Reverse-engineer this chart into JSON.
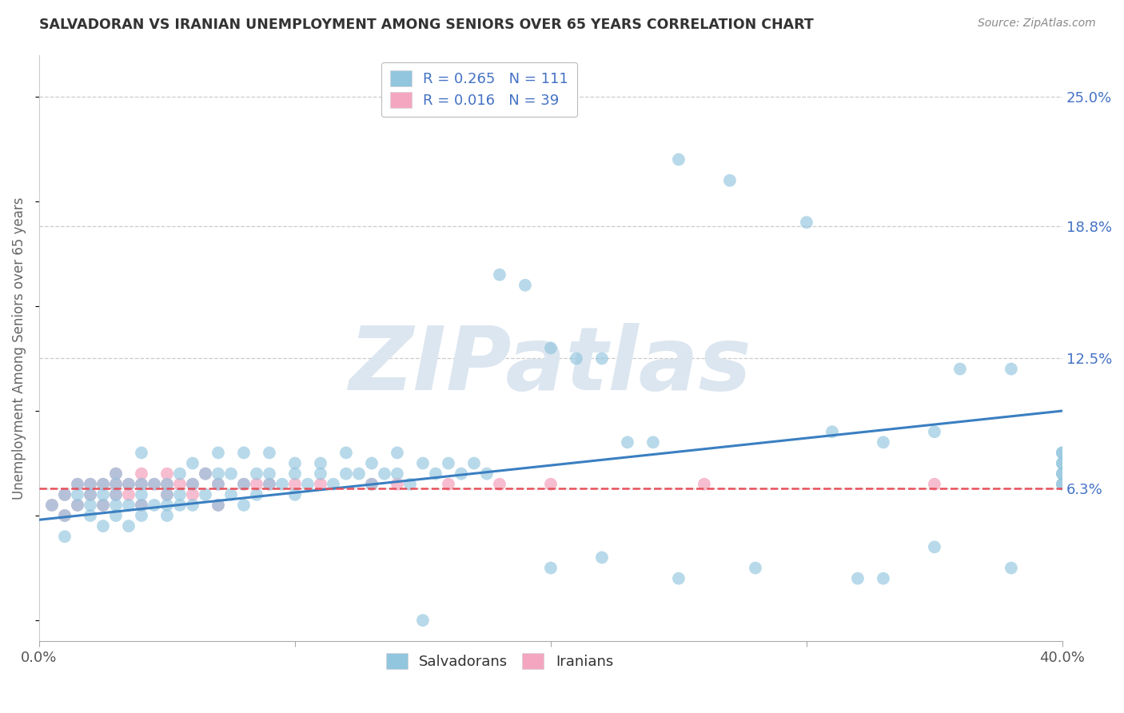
{
  "title": "SALVADORAN VS IRANIAN UNEMPLOYMENT AMONG SENIORS OVER 65 YEARS CORRELATION CHART",
  "source": "Source: ZipAtlas.com",
  "ylabel": "Unemployment Among Seniors over 65 years",
  "xlim": [
    0.0,
    0.4
  ],
  "ylim": [
    -0.01,
    0.27
  ],
  "yticks": [
    0.063,
    0.125,
    0.188,
    0.25
  ],
  "ytick_labels": [
    "6.3%",
    "12.5%",
    "18.8%",
    "25.0%"
  ],
  "xticks": [
    0.0,
    0.1,
    0.2,
    0.3,
    0.4
  ],
  "xtick_labels": [
    "0.0%",
    "",
    "",
    "",
    "40.0%"
  ],
  "salvadoran_R": 0.265,
  "salvadoran_N": 111,
  "iranian_R": 0.016,
  "iranian_N": 39,
  "salvadoran_color": "#92c5de",
  "iranian_color": "#f4a6c0",
  "salvadoran_line_color": "#3a7fc1",
  "iranian_line_color": "#e8505b",
  "background_color": "#ffffff",
  "watermark_text": "ZIPatlas",
  "watermark_color": "#dce6f0",
  "grid_color": "#cccccc",
  "legend_edge_color": "#bbbbbb",
  "label_color": "#4472c4",
  "title_color": "#333333",
  "source_color": "#888888",
  "salvadoran_x": [
    0.005,
    0.01,
    0.01,
    0.01,
    0.015,
    0.015,
    0.015,
    0.02,
    0.02,
    0.02,
    0.02,
    0.025,
    0.025,
    0.025,
    0.025,
    0.03,
    0.03,
    0.03,
    0.03,
    0.03,
    0.035,
    0.035,
    0.035,
    0.04,
    0.04,
    0.04,
    0.04,
    0.04,
    0.045,
    0.045,
    0.05,
    0.05,
    0.05,
    0.05,
    0.055,
    0.055,
    0.055,
    0.06,
    0.06,
    0.06,
    0.065,
    0.065,
    0.07,
    0.07,
    0.07,
    0.07,
    0.075,
    0.075,
    0.08,
    0.08,
    0.08,
    0.085,
    0.085,
    0.09,
    0.09,
    0.09,
    0.095,
    0.1,
    0.1,
    0.1,
    0.105,
    0.11,
    0.11,
    0.115,
    0.12,
    0.12,
    0.125,
    0.13,
    0.13,
    0.135,
    0.14,
    0.14,
    0.145,
    0.15,
    0.155,
    0.16,
    0.165,
    0.17,
    0.175,
    0.18,
    0.19,
    0.2,
    0.21,
    0.22,
    0.23,
    0.24,
    0.25,
    0.27,
    0.3,
    0.31,
    0.33,
    0.35,
    0.36,
    0.38,
    0.15,
    0.2,
    0.22,
    0.25,
    0.28,
    0.32,
    0.33,
    0.35,
    0.38,
    0.4,
    0.4,
    0.4,
    0.4,
    0.4,
    0.4,
    0.4,
    0.4
  ],
  "salvadoran_y": [
    0.055,
    0.05,
    0.06,
    0.04,
    0.055,
    0.06,
    0.065,
    0.05,
    0.055,
    0.06,
    0.065,
    0.045,
    0.055,
    0.06,
    0.065,
    0.05,
    0.055,
    0.06,
    0.065,
    0.07,
    0.045,
    0.055,
    0.065,
    0.05,
    0.055,
    0.06,
    0.065,
    0.08,
    0.055,
    0.065,
    0.05,
    0.055,
    0.06,
    0.065,
    0.055,
    0.06,
    0.07,
    0.055,
    0.065,
    0.075,
    0.06,
    0.07,
    0.055,
    0.065,
    0.07,
    0.08,
    0.06,
    0.07,
    0.055,
    0.065,
    0.08,
    0.06,
    0.07,
    0.065,
    0.07,
    0.08,
    0.065,
    0.06,
    0.07,
    0.075,
    0.065,
    0.07,
    0.075,
    0.065,
    0.07,
    0.08,
    0.07,
    0.065,
    0.075,
    0.07,
    0.07,
    0.08,
    0.065,
    0.075,
    0.07,
    0.075,
    0.07,
    0.075,
    0.07,
    0.165,
    0.16,
    0.13,
    0.125,
    0.125,
    0.085,
    0.085,
    0.22,
    0.21,
    0.19,
    0.09,
    0.085,
    0.09,
    0.12,
    0.12,
    0.0,
    0.025,
    0.03,
    0.02,
    0.025,
    0.02,
    0.02,
    0.035,
    0.025,
    0.07,
    0.065,
    0.075,
    0.08,
    0.07,
    0.065,
    0.075,
    0.08
  ],
  "iranian_x": [
    0.005,
    0.01,
    0.01,
    0.015,
    0.015,
    0.02,
    0.02,
    0.025,
    0.025,
    0.03,
    0.03,
    0.03,
    0.035,
    0.035,
    0.04,
    0.04,
    0.04,
    0.045,
    0.05,
    0.05,
    0.05,
    0.055,
    0.06,
    0.06,
    0.065,
    0.07,
    0.07,
    0.08,
    0.085,
    0.09,
    0.1,
    0.11,
    0.13,
    0.14,
    0.16,
    0.18,
    0.2,
    0.26,
    0.35
  ],
  "iranian_y": [
    0.055,
    0.06,
    0.05,
    0.065,
    0.055,
    0.06,
    0.065,
    0.055,
    0.065,
    0.06,
    0.065,
    0.07,
    0.065,
    0.06,
    0.055,
    0.065,
    0.07,
    0.065,
    0.06,
    0.065,
    0.07,
    0.065,
    0.06,
    0.065,
    0.07,
    0.065,
    0.055,
    0.065,
    0.065,
    0.065,
    0.065,
    0.065,
    0.065,
    0.065,
    0.065,
    0.065,
    0.065,
    0.065,
    0.065
  ],
  "sal_trend_x0": 0.0,
  "sal_trend_y0": 0.048,
  "sal_trend_x1": 0.4,
  "sal_trend_y1": 0.1,
  "iran_trend_x0": 0.0,
  "iran_trend_y0": 0.063,
  "iran_trend_x1": 0.4,
  "iran_trend_y1": 0.063
}
